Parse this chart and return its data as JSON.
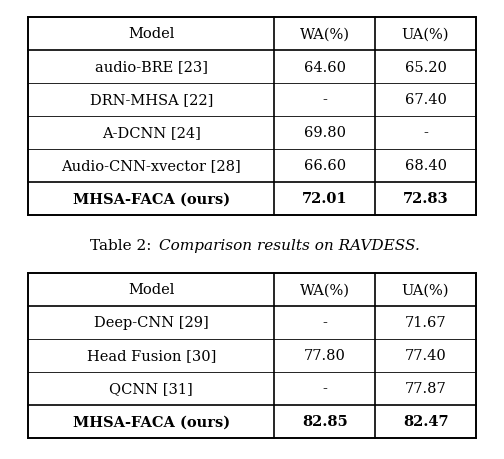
{
  "table1": {
    "header": [
      "Model",
      "WA(%)",
      "UA(%)"
    ],
    "rows": [
      [
        "audio-BRE [23]",
        "64.60",
        "65.20"
      ],
      [
        "DRN-MHSA [22]",
        "-",
        "67.40"
      ],
      [
        "A-DCNN [24]",
        "69.80",
        "-"
      ],
      [
        "Audio-CNN-xvector [28]",
        "66.60",
        "68.40"
      ],
      [
        "MHSA-FACA (ours)",
        "72.01",
        "72.83"
      ]
    ]
  },
  "table2": {
    "header": [
      "Model",
      "WA(%)",
      "UA(%)"
    ],
    "rows": [
      [
        "Deep-CNN [29]",
        "-",
        "71.67"
      ],
      [
        "Head Fusion [30]",
        "77.80",
        "77.40"
      ],
      [
        "QCNN [31]",
        "-",
        "77.87"
      ],
      [
        "MHSA-FACA (ours)",
        "82.85",
        "82.47"
      ]
    ]
  },
  "bg_color": "#ffffff"
}
